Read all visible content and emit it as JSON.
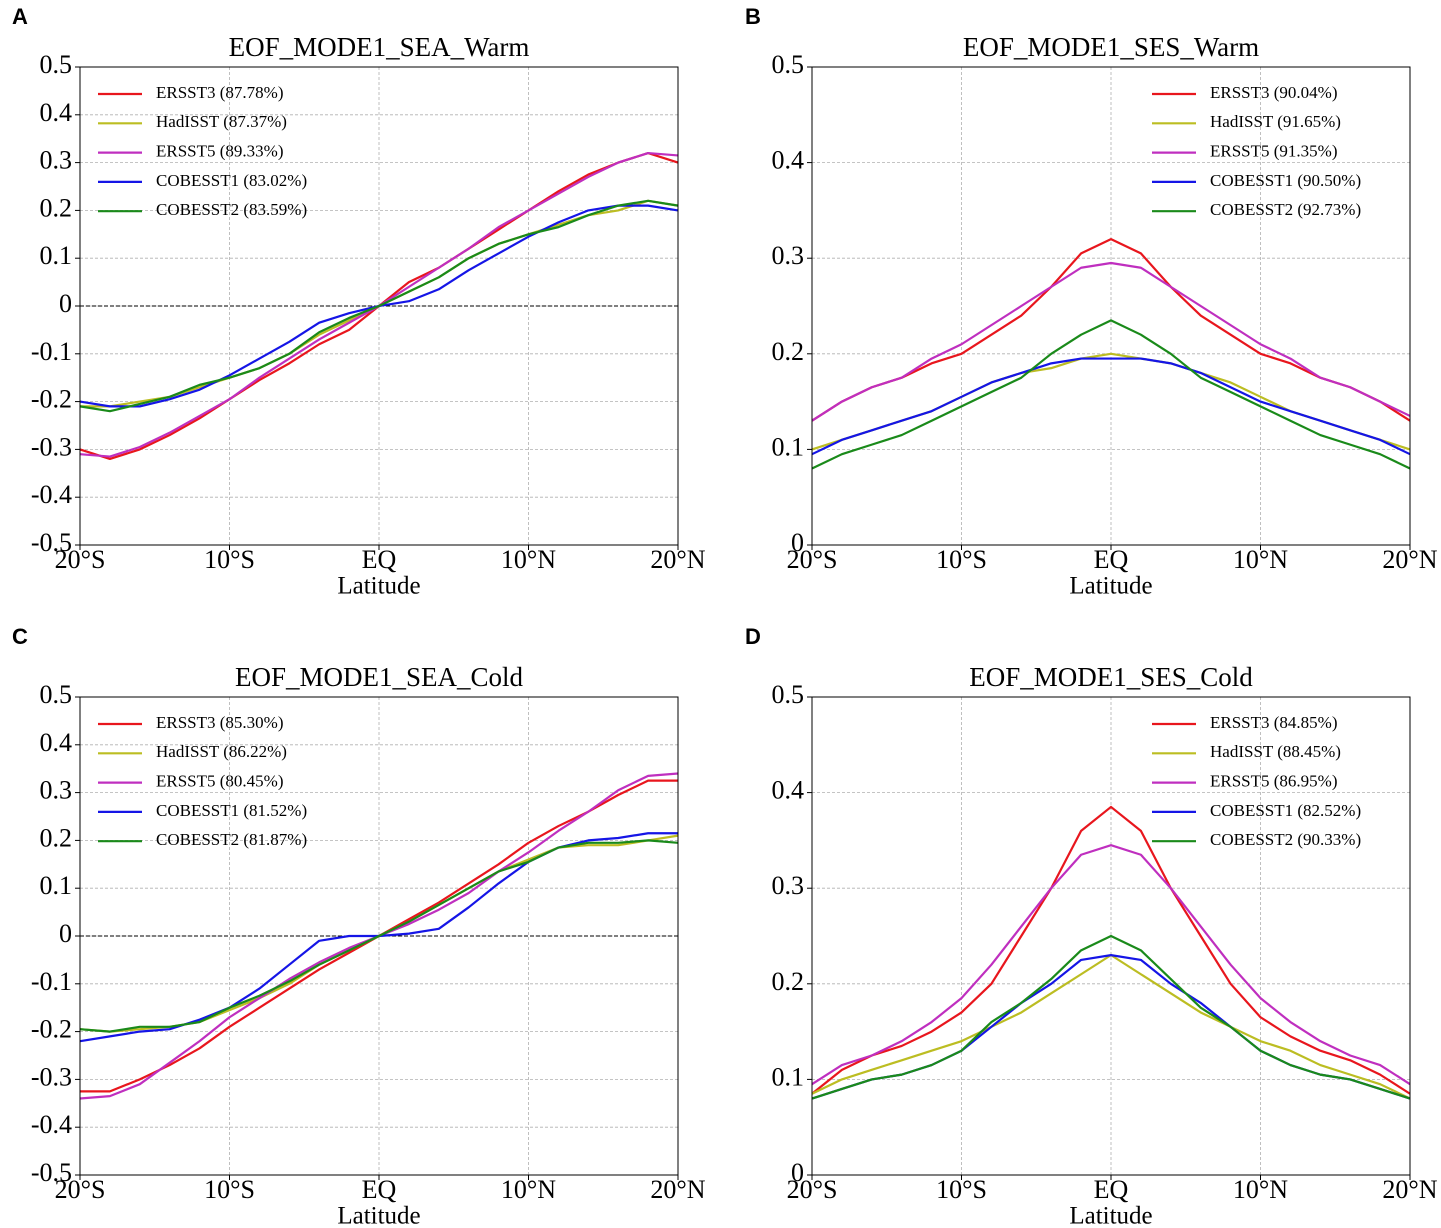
{
  "chart_data": [
    {
      "type": "line",
      "panel_label": "A",
      "title": "EOF_MODE1_SEA_Warm",
      "x_label": "Latitude",
      "legend": "upper left",
      "grid": true,
      "zero_line": true,
      "x": [
        -20,
        -18,
        -16,
        -14,
        -12,
        -10,
        -8,
        -6,
        -4,
        -2,
        0,
        2,
        4,
        6,
        8,
        10,
        12,
        14,
        16,
        18,
        20
      ],
      "xlim": [
        -20,
        20
      ],
      "xticks": [
        {
          "value": -20,
          "label": "20°S"
        },
        {
          "value": -10,
          "label": "10°S"
        },
        {
          "value": 0,
          "label": "EQ"
        },
        {
          "value": 10,
          "label": "10°N"
        },
        {
          "value": 20,
          "label": "20°N"
        }
      ],
      "ylim": [
        -0.5,
        0.5
      ],
      "yticks": [
        -0.5,
        -0.4,
        -0.3,
        -0.2,
        -0.1,
        0,
        0.1,
        0.2,
        0.3,
        0.4,
        0.5
      ],
      "series": [
        {
          "name": "ERSST3 (87.78%)",
          "color": "#e8161d",
          "values": [
            -0.3,
            -0.32,
            -0.3,
            -0.27,
            -0.235,
            -0.195,
            -0.155,
            -0.12,
            -0.08,
            -0.05,
            0,
            0.05,
            0.08,
            0.12,
            0.16,
            0.2,
            0.24,
            0.275,
            0.3,
            0.32,
            0.3
          ]
        },
        {
          "name": "HadISST (87.37%)",
          "color": "#bcbd22",
          "values": [
            -0.21,
            -0.21,
            -0.2,
            -0.19,
            -0.17,
            -0.15,
            -0.13,
            -0.1,
            -0.06,
            -0.03,
            0,
            0.03,
            0.06,
            0.1,
            0.13,
            0.15,
            0.17,
            0.19,
            0.2,
            0.22,
            0.21
          ]
        },
        {
          "name": "ERSST5 (89.33%)",
          "color": "#bf2fbf",
          "values": [
            -0.31,
            -0.315,
            -0.295,
            -0.265,
            -0.23,
            -0.195,
            -0.15,
            -0.11,
            -0.07,
            -0.035,
            0,
            0.04,
            0.08,
            0.12,
            0.165,
            0.2,
            0.235,
            0.27,
            0.3,
            0.32,
            0.315
          ]
        },
        {
          "name": "COBESST1 (83.02%)",
          "color": "#1515e6",
          "values": [
            -0.2,
            -0.21,
            -0.21,
            -0.195,
            -0.175,
            -0.145,
            -0.11,
            -0.075,
            -0.035,
            -0.015,
            0,
            0.01,
            0.035,
            0.075,
            0.11,
            0.145,
            0.175,
            0.2,
            0.21,
            0.21,
            0.2
          ]
        },
        {
          "name": "COBESST2 (83.59%)",
          "color": "#1a8a1a",
          "values": [
            -0.21,
            -0.22,
            -0.205,
            -0.19,
            -0.165,
            -0.15,
            -0.13,
            -0.1,
            -0.055,
            -0.025,
            0,
            0.03,
            0.06,
            0.1,
            0.13,
            0.15,
            0.165,
            0.19,
            0.21,
            0.22,
            0.21
          ]
        }
      ]
    },
    {
      "type": "line",
      "panel_label": "B",
      "title": "EOF_MODE1_SES_Warm",
      "x_label": "Latitude",
      "legend": "upper right",
      "grid": true,
      "zero_line": false,
      "x": [
        -20,
        -18,
        -16,
        -14,
        -12,
        -10,
        -8,
        -6,
        -4,
        -2,
        0,
        2,
        4,
        6,
        8,
        10,
        12,
        14,
        16,
        18,
        20
      ],
      "xlim": [
        -20,
        20
      ],
      "xticks": [
        {
          "value": -20,
          "label": "20°S"
        },
        {
          "value": -10,
          "label": "10°S"
        },
        {
          "value": 0,
          "label": "EQ"
        },
        {
          "value": 10,
          "label": "10°N"
        },
        {
          "value": 20,
          "label": "20°N"
        }
      ],
      "ylim": [
        0,
        0.5
      ],
      "yticks": [
        0,
        0.1,
        0.2,
        0.3,
        0.4,
        0.5
      ],
      "series": [
        {
          "name": "ERSST3 (90.04%)",
          "color": "#e8161d",
          "values": [
            0.13,
            0.15,
            0.165,
            0.175,
            0.19,
            0.2,
            0.22,
            0.24,
            0.27,
            0.305,
            0.32,
            0.305,
            0.27,
            0.24,
            0.22,
            0.2,
            0.19,
            0.175,
            0.165,
            0.15,
            0.13
          ]
        },
        {
          "name": "HadISST (91.65%)",
          "color": "#bcbd22",
          "values": [
            0.1,
            0.11,
            0.12,
            0.13,
            0.14,
            0.155,
            0.17,
            0.18,
            0.185,
            0.195,
            0.2,
            0.195,
            0.19,
            0.18,
            0.17,
            0.155,
            0.14,
            0.13,
            0.12,
            0.11,
            0.1
          ]
        },
        {
          "name": "ERSST5 (91.35%)",
          "color": "#bf2fbf",
          "values": [
            0.13,
            0.15,
            0.165,
            0.175,
            0.195,
            0.21,
            0.23,
            0.25,
            0.27,
            0.29,
            0.295,
            0.29,
            0.27,
            0.25,
            0.23,
            0.21,
            0.195,
            0.175,
            0.165,
            0.15,
            0.135
          ]
        },
        {
          "name": "COBESST1 (90.50%)",
          "color": "#1515e6",
          "values": [
            0.095,
            0.11,
            0.12,
            0.13,
            0.14,
            0.155,
            0.17,
            0.18,
            0.19,
            0.195,
            0.195,
            0.195,
            0.19,
            0.18,
            0.165,
            0.15,
            0.14,
            0.13,
            0.12,
            0.11,
            0.095
          ]
        },
        {
          "name": "COBESST2 (92.73%)",
          "color": "#1a8a1a",
          "values": [
            0.08,
            0.095,
            0.105,
            0.115,
            0.13,
            0.145,
            0.16,
            0.175,
            0.2,
            0.22,
            0.235,
            0.22,
            0.2,
            0.175,
            0.16,
            0.145,
            0.13,
            0.115,
            0.105,
            0.095,
            0.08
          ]
        }
      ]
    },
    {
      "type": "line",
      "panel_label": "C",
      "title": "EOF_MODE1_SEA_Cold",
      "x_label": "Latitude",
      "legend": "upper left",
      "grid": true,
      "zero_line": true,
      "x": [
        -20,
        -18,
        -16,
        -14,
        -12,
        -10,
        -8,
        -6,
        -4,
        -2,
        0,
        2,
        4,
        6,
        8,
        10,
        12,
        14,
        16,
        18,
        20
      ],
      "xlim": [
        -20,
        20
      ],
      "xticks": [
        {
          "value": -20,
          "label": "20°S"
        },
        {
          "value": -10,
          "label": "10°S"
        },
        {
          "value": 0,
          "label": "EQ"
        },
        {
          "value": 10,
          "label": "10°N"
        },
        {
          "value": 20,
          "label": "20°N"
        }
      ],
      "ylim": [
        -0.5,
        0.5
      ],
      "yticks": [
        -0.5,
        -0.4,
        -0.3,
        -0.2,
        -0.1,
        0,
        0.1,
        0.2,
        0.3,
        0.4,
        0.5
      ],
      "series": [
        {
          "name": "ERSST3 (85.30%)",
          "color": "#e8161d",
          "values": [
            -0.325,
            -0.325,
            -0.3,
            -0.27,
            -0.235,
            -0.19,
            -0.15,
            -0.11,
            -0.07,
            -0.035,
            0,
            0.035,
            0.07,
            0.11,
            0.15,
            0.195,
            0.23,
            0.26,
            0.295,
            0.325,
            0.325
          ]
        },
        {
          "name": "HadISST (86.22%)",
          "color": "#bcbd22",
          "values": [
            -0.195,
            -0.2,
            -0.195,
            -0.19,
            -0.18,
            -0.155,
            -0.13,
            -0.1,
            -0.06,
            -0.03,
            0,
            0.03,
            0.065,
            0.1,
            0.135,
            0.16,
            0.185,
            0.19,
            0.19,
            0.2,
            0.21
          ]
        },
        {
          "name": "ERSST5 (80.45%)",
          "color": "#bf2fbf",
          "values": [
            -0.34,
            -0.335,
            -0.31,
            -0.265,
            -0.22,
            -0.17,
            -0.13,
            -0.09,
            -0.055,
            -0.025,
            0,
            0.025,
            0.055,
            0.09,
            0.135,
            0.175,
            0.22,
            0.26,
            0.305,
            0.335,
            0.34
          ]
        },
        {
          "name": "COBESST1 (81.52%)",
          "color": "#1515e6",
          "values": [
            -0.22,
            -0.21,
            -0.2,
            -0.195,
            -0.175,
            -0.15,
            -0.11,
            -0.06,
            -0.01,
            0,
            0,
            0.005,
            0.015,
            0.06,
            0.11,
            0.155,
            0.185,
            0.2,
            0.205,
            0.215,
            0.215
          ]
        },
        {
          "name": "COBESST2 (81.87%)",
          "color": "#1a8a1a",
          "values": [
            -0.195,
            -0.2,
            -0.19,
            -0.19,
            -0.18,
            -0.15,
            -0.125,
            -0.095,
            -0.06,
            -0.03,
            0,
            0.03,
            0.065,
            0.1,
            0.135,
            0.155,
            0.185,
            0.195,
            0.195,
            0.2,
            0.195
          ]
        }
      ]
    },
    {
      "type": "line",
      "panel_label": "D",
      "title": "EOF_MODE1_SES_Cold",
      "x_label": "Latitude",
      "legend": "upper right",
      "grid": true,
      "zero_line": false,
      "x": [
        -20,
        -18,
        -16,
        -14,
        -12,
        -10,
        -8,
        -6,
        -4,
        -2,
        0,
        2,
        4,
        6,
        8,
        10,
        12,
        14,
        16,
        18,
        20
      ],
      "xlim": [
        -20,
        20
      ],
      "xticks": [
        {
          "value": -20,
          "label": "20°S"
        },
        {
          "value": -10,
          "label": "10°S"
        },
        {
          "value": 0,
          "label": "EQ"
        },
        {
          "value": 10,
          "label": "10°N"
        },
        {
          "value": 20,
          "label": "20°N"
        }
      ],
      "ylim": [
        0,
        0.5
      ],
      "yticks": [
        0,
        0.1,
        0.2,
        0.3,
        0.4,
        0.5
      ],
      "series": [
        {
          "name": "ERSST3 (84.85%)",
          "color": "#e8161d",
          "values": [
            0.085,
            0.11,
            0.125,
            0.135,
            0.15,
            0.17,
            0.2,
            0.25,
            0.3,
            0.36,
            0.385,
            0.36,
            0.3,
            0.25,
            0.2,
            0.165,
            0.145,
            0.13,
            0.12,
            0.105,
            0.085
          ]
        },
        {
          "name": "HadISST (88.45%)",
          "color": "#bcbd22",
          "values": [
            0.085,
            0.1,
            0.11,
            0.12,
            0.13,
            0.14,
            0.155,
            0.17,
            0.19,
            0.21,
            0.23,
            0.21,
            0.19,
            0.17,
            0.155,
            0.14,
            0.13,
            0.115,
            0.105,
            0.095,
            0.08
          ]
        },
        {
          "name": "ERSST5 (86.95%)",
          "color": "#bf2fbf",
          "values": [
            0.095,
            0.115,
            0.125,
            0.14,
            0.16,
            0.185,
            0.22,
            0.26,
            0.3,
            0.335,
            0.345,
            0.335,
            0.3,
            0.26,
            0.22,
            0.185,
            0.16,
            0.14,
            0.125,
            0.115,
            0.095
          ]
        },
        {
          "name": "COBESST1 (82.52%)",
          "color": "#1515e6",
          "values": [
            0.08,
            0.09,
            0.1,
            0.105,
            0.115,
            0.13,
            0.155,
            0.18,
            0.2,
            0.225,
            0.23,
            0.225,
            0.2,
            0.18,
            0.155,
            0.13,
            0.115,
            0.105,
            0.1,
            0.09,
            0.08
          ]
        },
        {
          "name": "COBESST2 (90.33%)",
          "color": "#1a8a1a",
          "values": [
            0.08,
            0.09,
            0.1,
            0.105,
            0.115,
            0.13,
            0.16,
            0.18,
            0.205,
            0.235,
            0.25,
            0.235,
            0.205,
            0.175,
            0.155,
            0.13,
            0.115,
            0.105,
            0.1,
            0.09,
            0.08
          ]
        }
      ]
    }
  ]
}
